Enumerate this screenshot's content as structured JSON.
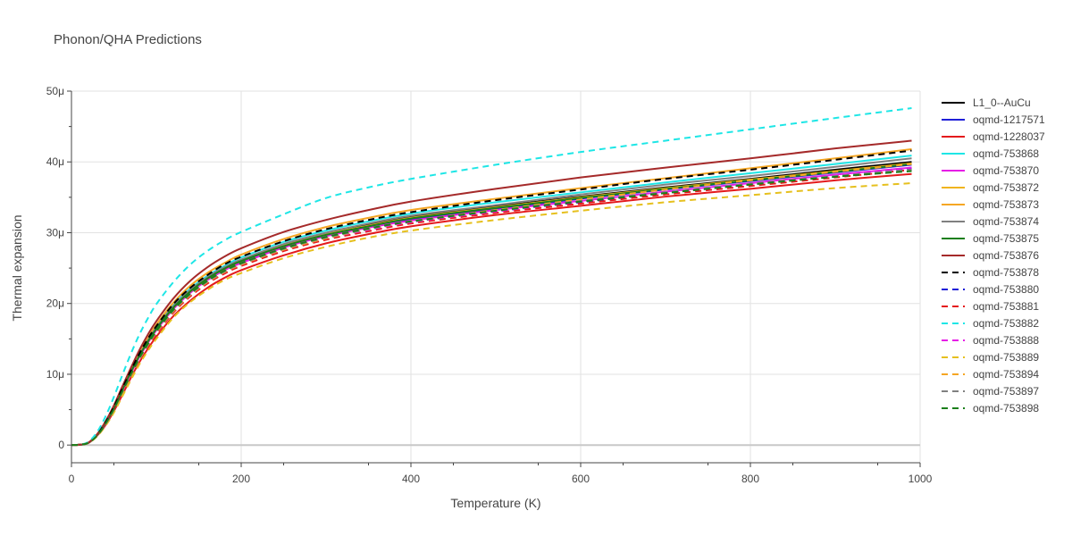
{
  "chart_data": {
    "type": "line",
    "title": "Phonon/QHA Predictions",
    "xlabel": "Temperature (K)",
    "ylabel": "Thermal expansion",
    "xlim": [
      0,
      1000
    ],
    "ylim": [
      -2.5,
      50
    ],
    "y_unit_suffix": "μ",
    "x_ticks": [
      0,
      200,
      400,
      600,
      800,
      1000
    ],
    "y_ticks": [
      0,
      10,
      20,
      30,
      40,
      50
    ],
    "x_tick_labels": [
      "0",
      "200",
      "400",
      "600",
      "800",
      "1000"
    ],
    "y_tick_labels": [
      "0",
      "10μ",
      "20μ",
      "30μ",
      "40μ",
      "50μ"
    ],
    "grid": true,
    "legend_position": "right",
    "x": [
      0,
      10,
      20,
      30,
      40,
      50,
      60,
      70,
      80,
      90,
      100,
      120,
      140,
      160,
      180,
      200,
      250,
      300,
      350,
      400,
      500,
      600,
      700,
      800,
      900,
      990
    ],
    "series": [
      {
        "name": "L1_0--AuCu",
        "color": "#000000",
        "dash": "solid",
        "values": [
          0,
          0.05,
          0.33,
          1.4,
          3.1,
          5.3,
          7.9,
          10.4,
          12.8,
          14.8,
          16.6,
          19.6,
          21.9,
          23.6,
          25.0,
          26.1,
          28.3,
          29.9,
          31.1,
          32.2,
          33.7,
          35.1,
          36.4,
          37.6,
          38.9,
          40.0
        ]
      },
      {
        "name": "oqmd-1217571",
        "color": "#1f1fd8",
        "dash": "solid",
        "values": [
          0,
          0.05,
          0.32,
          1.4,
          3.0,
          5.2,
          7.7,
          10.2,
          12.5,
          14.5,
          16.3,
          19.3,
          21.6,
          23.3,
          24.7,
          25.8,
          28.0,
          29.6,
          30.8,
          31.9,
          33.4,
          34.8,
          36.1,
          37.3,
          38.5,
          39.6
        ]
      },
      {
        "name": "oqmd-1228037",
        "color": "#e41a1c",
        "dash": "solid",
        "values": [
          0,
          0.04,
          0.3,
          1.3,
          2.8,
          4.8,
          7.1,
          9.5,
          11.7,
          13.6,
          15.3,
          18.2,
          20.4,
          22.2,
          23.6,
          24.7,
          26.8,
          28.5,
          29.8,
          30.9,
          32.5,
          33.8,
          35.1,
          36.2,
          37.4,
          38.3
        ]
      },
      {
        "name": "oqmd-753868",
        "color": "#1ee6e6",
        "dash": "solid",
        "values": [
          0,
          0.05,
          0.34,
          1.4,
          3.1,
          5.3,
          7.9,
          10.4,
          12.8,
          14.9,
          16.7,
          19.8,
          22.1,
          23.9,
          25.3,
          26.5,
          28.7,
          30.3,
          31.6,
          32.7,
          34.3,
          35.7,
          37.1,
          38.4,
          39.7,
          40.9
        ]
      },
      {
        "name": "oqmd-753870",
        "color": "#e61ee6",
        "dash": "solid",
        "values": [
          0,
          0.05,
          0.32,
          1.4,
          3.0,
          5.2,
          7.7,
          10.1,
          12.4,
          14.4,
          16.2,
          19.2,
          21.5,
          23.3,
          24.7,
          25.7,
          27.9,
          29.5,
          30.7,
          31.7,
          33.2,
          34.5,
          35.8,
          37.0,
          38.2,
          39.2
        ]
      },
      {
        "name": "oqmd-753872",
        "color": "#f0b41e",
        "dash": "solid",
        "values": [
          0,
          0.05,
          0.33,
          1.4,
          3.1,
          5.3,
          7.8,
          10.3,
          12.6,
          14.6,
          16.4,
          19.4,
          21.7,
          23.5,
          24.9,
          26.0,
          28.2,
          29.8,
          31.0,
          32.1,
          33.6,
          35.0,
          36.3,
          37.5,
          38.7,
          39.8
        ]
      },
      {
        "name": "oqmd-753873",
        "color": "#f5a623",
        "dash": "solid",
        "values": [
          0,
          0.05,
          0.34,
          1.4,
          3.2,
          5.4,
          8.0,
          10.6,
          13.0,
          15.1,
          17.0,
          20.1,
          22.5,
          24.3,
          25.7,
          26.9,
          29.1,
          30.8,
          32.1,
          33.2,
          34.8,
          36.3,
          37.7,
          39.1,
          40.5,
          41.8
        ]
      },
      {
        "name": "oqmd-753874",
        "color": "#808080",
        "dash": "solid",
        "values": [
          0,
          0.05,
          0.33,
          1.4,
          3.1,
          5.3,
          7.9,
          10.4,
          12.7,
          14.8,
          16.6,
          19.6,
          21.9,
          23.7,
          25.1,
          26.2,
          28.4,
          30.0,
          31.3,
          32.4,
          33.9,
          35.4,
          36.8,
          38.0,
          39.3,
          40.5
        ]
      },
      {
        "name": "oqmd-753875",
        "color": "#1a7f1a",
        "dash": "solid",
        "values": [
          0,
          0.05,
          0.33,
          1.4,
          3.1,
          5.2,
          7.8,
          10.3,
          12.6,
          14.6,
          16.4,
          19.4,
          21.7,
          23.5,
          24.9,
          26.0,
          28.1,
          29.7,
          30.9,
          32.0,
          33.5,
          34.9,
          36.2,
          37.4,
          38.6,
          39.7
        ]
      },
      {
        "name": "oqmd-753876",
        "color": "#a52a2a",
        "dash": "solid",
        "values": [
          0,
          0.05,
          0.35,
          1.5,
          3.3,
          5.6,
          8.3,
          10.9,
          13.4,
          15.6,
          17.5,
          20.7,
          23.2,
          25.1,
          26.6,
          27.8,
          30.1,
          31.8,
          33.2,
          34.4,
          36.2,
          37.8,
          39.2,
          40.5,
          41.9,
          43.0
        ]
      },
      {
        "name": "oqmd-753878",
        "color": "#000000",
        "dash": "dash",
        "values": [
          0,
          0.05,
          0.34,
          1.4,
          3.2,
          5.4,
          8.0,
          10.5,
          12.9,
          15.0,
          16.8,
          19.9,
          22.2,
          24.0,
          25.5,
          26.6,
          28.8,
          30.5,
          31.8,
          32.9,
          34.6,
          36.1,
          37.6,
          38.9,
          40.3,
          41.6
        ]
      },
      {
        "name": "oqmd-753880",
        "color": "#1f1fd8",
        "dash": "dash",
        "values": [
          0,
          0.05,
          0.32,
          1.3,
          2.9,
          5.0,
          7.5,
          9.9,
          12.2,
          14.2,
          16.0,
          19.0,
          21.3,
          23.1,
          24.5,
          25.6,
          27.7,
          29.3,
          30.5,
          31.5,
          33.0,
          34.3,
          35.6,
          36.8,
          38.0,
          39.0
        ]
      },
      {
        "name": "oqmd-753881",
        "color": "#e41a1c",
        "dash": "dash",
        "values": [
          0,
          0.04,
          0.3,
          1.3,
          2.8,
          4.8,
          7.2,
          9.6,
          11.9,
          13.9,
          15.7,
          18.7,
          21.0,
          22.8,
          24.2,
          25.3,
          27.4,
          29.0,
          30.2,
          31.3,
          32.8,
          34.1,
          35.4,
          36.6,
          37.8,
          38.9
        ]
      },
      {
        "name": "oqmd-753882",
        "color": "#1ee6e6",
        "dash": "dash",
        "values": [
          0,
          0.07,
          0.45,
          1.8,
          4.0,
          6.8,
          9.9,
          12.9,
          15.6,
          17.9,
          19.9,
          23.0,
          25.5,
          27.4,
          28.9,
          30.1,
          32.6,
          34.9,
          36.4,
          37.6,
          39.6,
          41.4,
          43.0,
          44.6,
          46.2,
          47.6
        ]
      },
      {
        "name": "oqmd-753888",
        "color": "#e61ee6",
        "dash": "dash",
        "values": [
          0,
          0.05,
          0.32,
          1.3,
          2.9,
          5.0,
          7.5,
          9.9,
          12.1,
          14.1,
          15.9,
          18.9,
          21.2,
          23.0,
          24.4,
          25.5,
          27.6,
          29.2,
          30.4,
          31.5,
          33.0,
          34.4,
          35.7,
          36.9,
          38.1,
          39.2
        ]
      },
      {
        "name": "oqmd-753889",
        "color": "#e6c01e",
        "dash": "dash",
        "values": [
          0,
          0.04,
          0.29,
          1.2,
          2.7,
          4.6,
          6.9,
          9.2,
          11.4,
          13.3,
          15.0,
          18.0,
          20.2,
          21.9,
          23.3,
          24.3,
          26.4,
          28.0,
          29.3,
          30.3,
          31.8,
          33.1,
          34.3,
          35.3,
          36.3,
          37.0
        ]
      },
      {
        "name": "oqmd-753894",
        "color": "#f5a623",
        "dash": "dash",
        "values": [
          0,
          0.05,
          0.31,
          1.3,
          2.9,
          5.0,
          7.4,
          9.8,
          12.1,
          14.1,
          15.9,
          18.9,
          21.2,
          23.0,
          24.4,
          25.5,
          27.6,
          29.2,
          30.5,
          31.6,
          33.2,
          34.7,
          36.1,
          37.4,
          38.6,
          39.7
        ]
      },
      {
        "name": "oqmd-753897",
        "color": "#808080",
        "dash": "dash",
        "values": [
          0,
          0.05,
          0.32,
          1.3,
          2.9,
          5.0,
          7.5,
          9.9,
          12.2,
          14.2,
          16.0,
          19.0,
          21.3,
          23.1,
          24.5,
          25.6,
          27.7,
          29.3,
          30.5,
          31.6,
          33.1,
          34.5,
          35.7,
          36.9,
          38.0,
          38.9
        ]
      },
      {
        "name": "oqmd-753898",
        "color": "#1a7f1a",
        "dash": "dash",
        "values": [
          0,
          0.05,
          0.32,
          1.3,
          3.0,
          5.1,
          7.6,
          10.0,
          12.3,
          14.3,
          16.1,
          19.1,
          21.4,
          23.2,
          24.6,
          25.7,
          27.8,
          29.4,
          30.6,
          31.6,
          33.1,
          34.4,
          35.6,
          36.8,
          37.9,
          38.7
        ]
      }
    ]
  }
}
